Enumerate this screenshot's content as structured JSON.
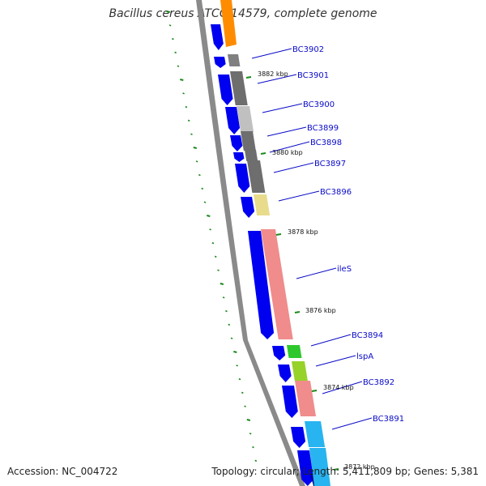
{
  "title": "Bacillus cereus ATCC 14579, complete genome",
  "footer": {
    "accession": "Accession: NC_004722",
    "stats": "Topology: circular; Length: 5,411,809 bp; Genes: 5,381"
  },
  "colors": {
    "forward_strand": "#0000f0",
    "backbone": "#808080",
    "tick": "#1a8a1a",
    "label_line": "#0a0ac8"
  },
  "genes": [
    {
      "name": "BC3902",
      "color": "#808080"
    },
    {
      "name": "BC3901",
      "color": "#6e6e6e"
    },
    {
      "name": "BC3900",
      "color": "#c0c0c0"
    },
    {
      "name": "BC3899",
      "color": "#6e6e6e"
    },
    {
      "name": "BC3898",
      "color": "#6e6e6e"
    },
    {
      "name": "BC3897",
      "color": "#6e6e6e"
    },
    {
      "name": "BC3896",
      "color": "#e8dc8c"
    },
    {
      "name": "ileS",
      "color": "#f08c8c"
    },
    {
      "name": "BC3894",
      "color": "#2ec82e"
    },
    {
      "name": "lspA",
      "color": "#96d228"
    },
    {
      "name": "BC3892",
      "color": "#f08c8c"
    },
    {
      "name": "BC3891",
      "color": "#28b4f0"
    }
  ],
  "kbp_marks": [
    "3882 kbp",
    "3880 kbp",
    "3878 kbp",
    "3876 kbp",
    "3874 kbp",
    "3872 kbp"
  ]
}
